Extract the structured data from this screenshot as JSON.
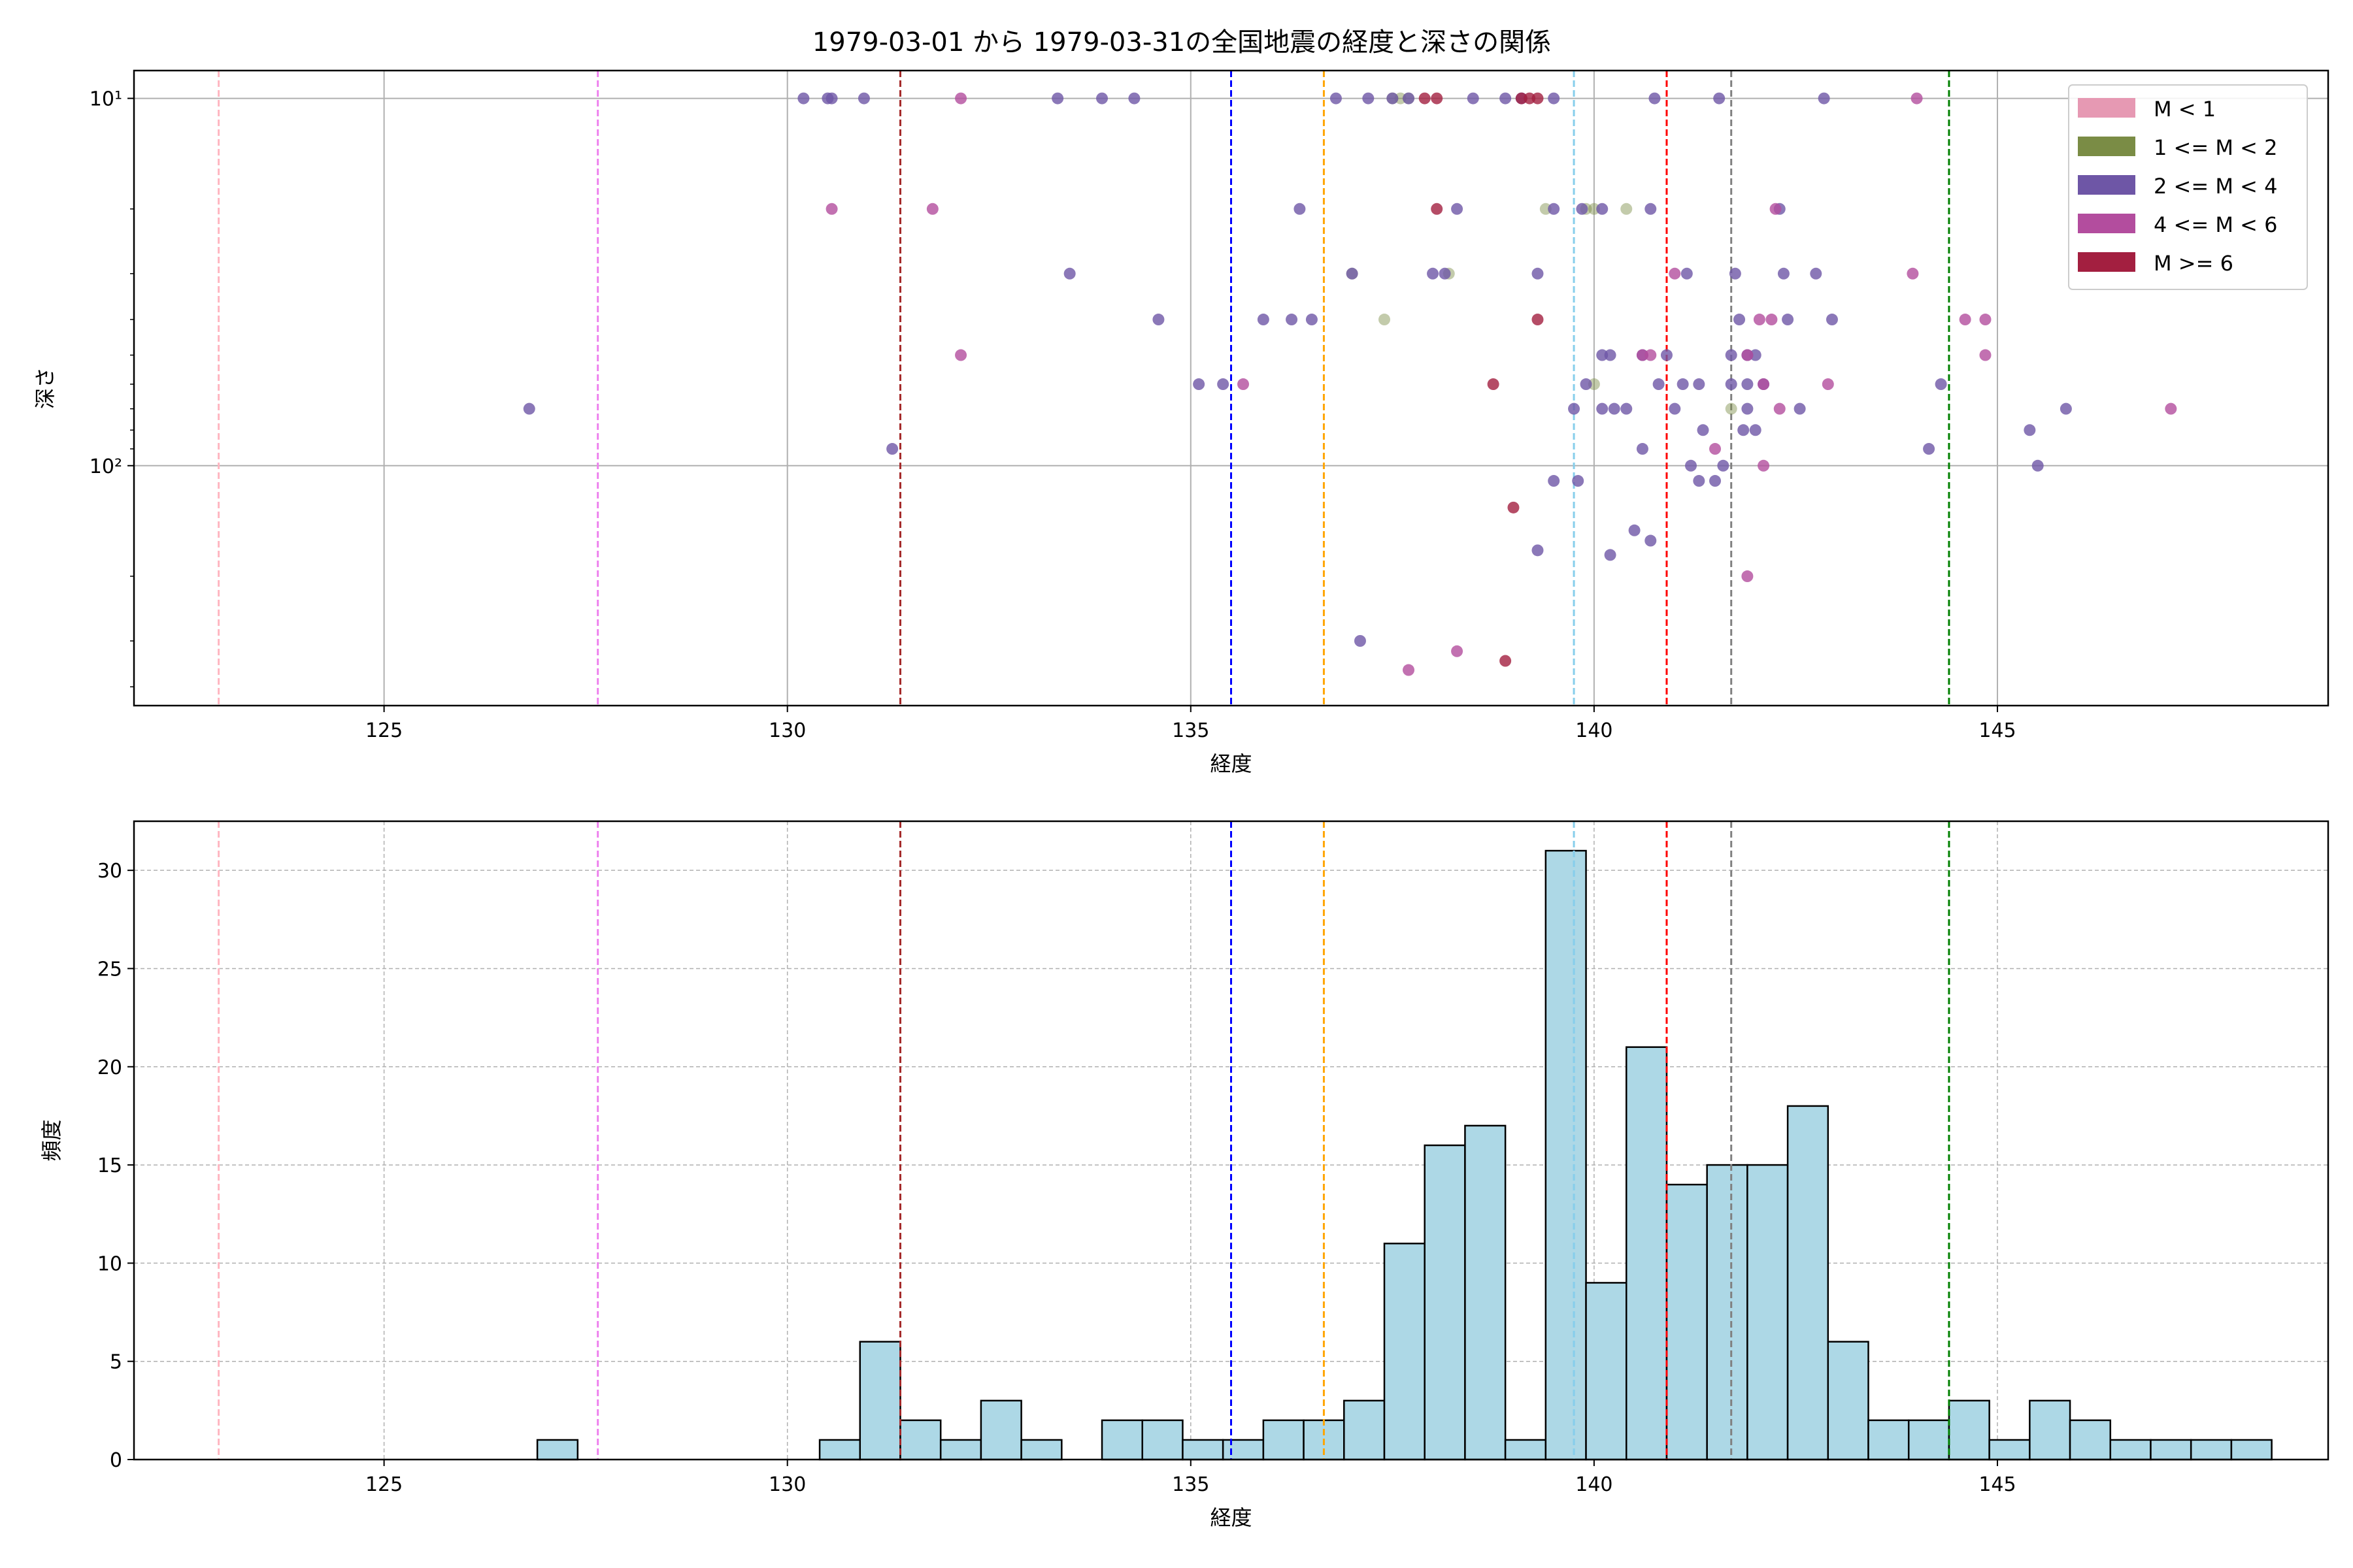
{
  "chart_data": [
    {
      "type": "scatter",
      "title": "1979-03-01 から 1979-03-31の全国地震の経度と深さの関係",
      "xlabel": "経度",
      "ylabel": "深さ",
      "xlim": [
        121.9,
        149.1
      ],
      "ylim": [
        450,
        8.4
      ],
      "yscale": "log",
      "y_inverted": true,
      "xticks": [
        125,
        130,
        135,
        140,
        145
      ],
      "yticks": [
        {
          "value": 10,
          "label": "10¹"
        },
        {
          "value": 100,
          "label": "10²"
        }
      ],
      "grid": "major",
      "legend": {
        "placement": "top-right",
        "entries": [
          {
            "label": "M < 1",
            "color": "#e699b3"
          },
          {
            "label": "1 <= M < 2",
            "color": "#7a8c45"
          },
          {
            "label": "2 <= M < 4",
            "color": "#6e56a6"
          },
          {
            "label": "4 <= M < 6",
            "color": "#b34d9e"
          },
          {
            "label": "M >= 6",
            "color": "#a31f40"
          }
        ]
      },
      "vlines": [
        {
          "x": 122.95,
          "color": "#ffb6c1"
        },
        {
          "x": 127.65,
          "color": "#ee82ee"
        },
        {
          "x": 131.4,
          "color": "#a52a2a"
        },
        {
          "x": 135.5,
          "color": "#0000ff"
        },
        {
          "x": 136.65,
          "color": "#ffa500"
        },
        {
          "x": 139.75,
          "color": "#87ceeb"
        },
        {
          "x": 140.9,
          "color": "#ff0000"
        },
        {
          "x": 141.7,
          "color": "#808080"
        },
        {
          "x": 144.4,
          "color": "#008000"
        }
      ],
      "series": [
        {
          "name": "1 <= M < 2",
          "color": "#7a8c45",
          "points": [
            [
              137.0,
              30
            ],
            [
              137.4,
              40
            ],
            [
              137.5,
              10
            ],
            [
              137.6,
              10
            ],
            [
              137.7,
              10
            ],
            [
              138.2,
              30
            ],
            [
              139.4,
              20
            ],
            [
              139.9,
              20
            ],
            [
              140.0,
              20
            ],
            [
              140.4,
              20
            ],
            [
              140.0,
              60
            ],
            [
              141.7,
              70
            ]
          ]
        },
        {
          "name": "2 <= M < 4",
          "color": "#6e56a6",
          "points": [
            [
              130.2,
              10
            ],
            [
              130.5,
              10
            ],
            [
              130.55,
              10
            ],
            [
              130.95,
              10
            ],
            [
              133.35,
              10
            ],
            [
              133.9,
              10
            ],
            [
              134.3,
              10
            ],
            [
              136.8,
              10
            ],
            [
              137.2,
              10
            ],
            [
              137.5,
              10
            ],
            [
              137.7,
              10
            ],
            [
              138.5,
              10
            ],
            [
              138.9,
              10
            ],
            [
              139.1,
              10
            ],
            [
              139.5,
              10
            ],
            [
              140.75,
              10
            ],
            [
              141.55,
              10
            ],
            [
              142.85,
              10
            ],
            [
              136.35,
              20
            ],
            [
              138.3,
              20
            ],
            [
              139.5,
              20
            ],
            [
              139.85,
              20
            ],
            [
              140.1,
              20
            ],
            [
              140.7,
              20
            ],
            [
              142.3,
              20
            ],
            [
              133.5,
              30
            ],
            [
              137.0,
              30
            ],
            [
              138.0,
              30
            ],
            [
              138.15,
              30
            ],
            [
              139.3,
              30
            ],
            [
              141.15,
              30
            ],
            [
              141.75,
              30
            ],
            [
              142.35,
              30
            ],
            [
              142.75,
              30
            ],
            [
              134.6,
              40
            ],
            [
              135.9,
              40
            ],
            [
              136.25,
              40
            ],
            [
              136.5,
              40
            ],
            [
              141.8,
              40
            ],
            [
              142.4,
              40
            ],
            [
              142.95,
              40
            ],
            [
              140.1,
              50
            ],
            [
              140.2,
              50
            ],
            [
              140.6,
              50
            ],
            [
              140.9,
              50
            ],
            [
              141.7,
              50
            ],
            [
              141.9,
              50
            ],
            [
              142.0,
              50
            ],
            [
              135.1,
              60
            ],
            [
              135.4,
              60
            ],
            [
              139.9,
              60
            ],
            [
              140.8,
              60
            ],
            [
              141.1,
              60
            ],
            [
              141.3,
              60
            ],
            [
              141.7,
              60
            ],
            [
              141.9,
              60
            ],
            [
              142.1,
              60
            ],
            [
              144.3,
              60
            ],
            [
              126.8,
              70
            ],
            [
              139.75,
              70
            ],
            [
              140.1,
              70
            ],
            [
              140.25,
              70
            ],
            [
              140.4,
              70
            ],
            [
              141.0,
              70
            ],
            [
              141.9,
              70
            ],
            [
              142.55,
              70
            ],
            [
              145.85,
              70
            ],
            [
              141.35,
              80
            ],
            [
              141.85,
              80
            ],
            [
              142.0,
              80
            ],
            [
              145.4,
              80
            ],
            [
              131.3,
              90
            ],
            [
              140.6,
              90
            ],
            [
              144.15,
              90
            ],
            [
              141.2,
              100
            ],
            [
              141.6,
              100
            ],
            [
              145.5,
              100
            ],
            [
              141.3,
              110
            ],
            [
              141.5,
              110
            ],
            [
              139.5,
              110
            ],
            [
              139.8,
              110
            ],
            [
              140.5,
              150
            ],
            [
              140.7,
              160
            ],
            [
              139.3,
              170
            ],
            [
              140.2,
              175
            ],
            [
              137.1,
              300
            ]
          ]
        },
        {
          "name": "4 <= M < 6",
          "color": "#b34d9e",
          "points": [
            [
              132.15,
              10
            ],
            [
              144.0,
              10
            ],
            [
              130.55,
              20
            ],
            [
              131.8,
              20
            ],
            [
              142.25,
              20
            ],
            [
              141.0,
              30
            ],
            [
              143.95,
              30
            ],
            [
              142.05,
              40
            ],
            [
              142.2,
              40
            ],
            [
              144.6,
              40
            ],
            [
              144.85,
              40
            ],
            [
              132.15,
              50
            ],
            [
              140.6,
              50
            ],
            [
              140.7,
              50
            ],
            [
              141.9,
              50
            ],
            [
              142.1,
              60
            ],
            [
              142.9,
              60
            ],
            [
              135.65,
              60
            ],
            [
              142.3,
              70
            ],
            [
              141.5,
              90
            ],
            [
              142.1,
              100
            ],
            [
              147.15,
              70
            ],
            [
              144.85,
              50
            ],
            [
              141.9,
              200
            ],
            [
              138.3,
              320
            ],
            [
              137.7,
              360
            ]
          ]
        },
        {
          "name": "M >= 6",
          "color": "#a31f40",
          "points": [
            [
              137.9,
              10
            ],
            [
              138.05,
              10
            ],
            [
              139.1,
              10
            ],
            [
              139.2,
              10
            ],
            [
              139.3,
              10
            ],
            [
              138.05,
              20
            ],
            [
              139.3,
              40
            ],
            [
              138.75,
              60
            ],
            [
              139.0,
              130
            ],
            [
              138.9,
              340
            ]
          ]
        }
      ]
    },
    {
      "type": "bar",
      "title": "",
      "xlabel": "経度",
      "ylabel": "頻度",
      "xlim": [
        121.9,
        149.1
      ],
      "ylim": [
        0,
        32.5
      ],
      "xticks": [
        125,
        130,
        135,
        140,
        145
      ],
      "yticks": [
        0,
        5,
        10,
        15,
        20,
        25,
        30
      ],
      "grid": "dashed",
      "bar_color": "#add8e6",
      "bin_start": 126.9,
      "bin_width": 0.5,
      "values": [
        1,
        0,
        0,
        0,
        0,
        0,
        0,
        1,
        6,
        2,
        1,
        3,
        1,
        0,
        2,
        2,
        1,
        1,
        2,
        2,
        3,
        11,
        16,
        17,
        1,
        31,
        9,
        21,
        14,
        15,
        15,
        18,
        6,
        2,
        2,
        3,
        1,
        3,
        2,
        1,
        1,
        1,
        1
      ],
      "vlines": [
        {
          "x": 122.95,
          "color": "#ffb6c1"
        },
        {
          "x": 127.65,
          "color": "#ee82ee"
        },
        {
          "x": 131.4,
          "color": "#a52a2a"
        },
        {
          "x": 135.5,
          "color": "#0000ff"
        },
        {
          "x": 136.65,
          "color": "#ffa500"
        },
        {
          "x": 139.75,
          "color": "#87ceeb"
        },
        {
          "x": 140.9,
          "color": "#ff0000"
        },
        {
          "x": 141.7,
          "color": "#808080"
        },
        {
          "x": 144.4,
          "color": "#008000"
        }
      ]
    }
  ]
}
